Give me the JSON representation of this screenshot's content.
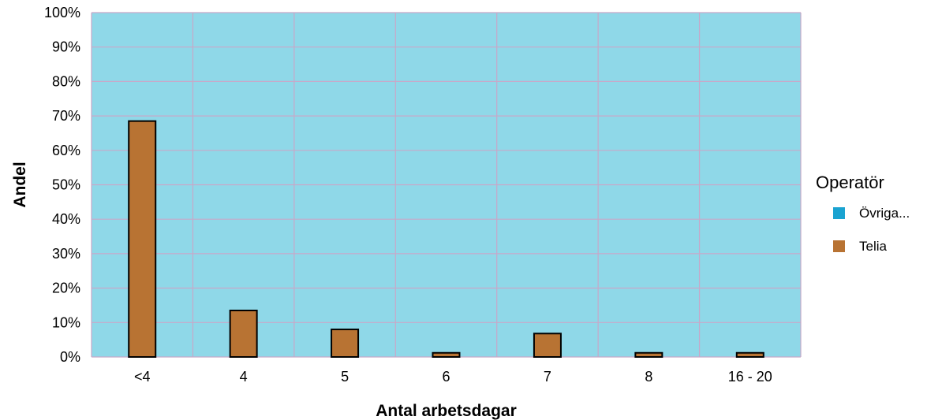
{
  "chart_data": {
    "type": "bar",
    "xlabel": "Antal arbetsdagar",
    "ylabel": "Andel",
    "categories": [
      "<4",
      "4",
      "5",
      "6",
      "7",
      "8",
      "16 - 20"
    ],
    "series": [
      {
        "name": "Övriga...",
        "color": "#1aa3d1",
        "values": [
          0,
          0,
          0,
          0,
          0,
          0,
          0
        ]
      },
      {
        "name": "Telia",
        "color": "#b87333",
        "values": [
          68.5,
          13.5,
          8,
          1.2,
          6.8,
          1.2,
          1.2
        ]
      }
    ],
    "ylim": [
      0,
      100
    ],
    "yticks": [
      "0%",
      "10%",
      "20%",
      "30%",
      "40%",
      "50%",
      "60%",
      "70%",
      "80%",
      "90%",
      "100%"
    ],
    "grid": true,
    "plot_background": "#8fd8e8",
    "grid_color": "#c8a8c8",
    "legend": {
      "title": "Operatör",
      "position": "right"
    }
  }
}
